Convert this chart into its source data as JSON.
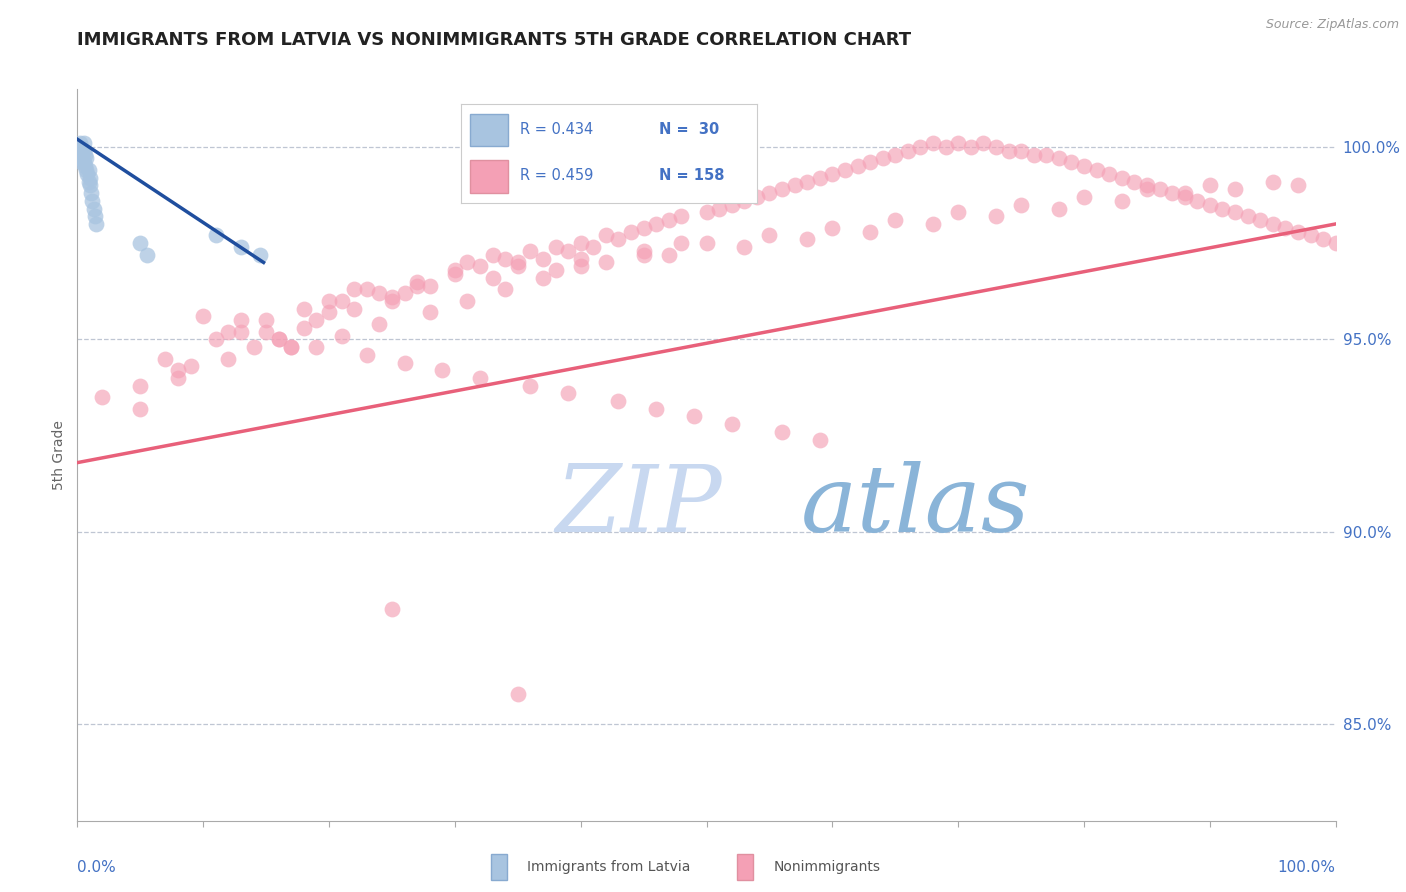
{
  "title": "IMMIGRANTS FROM LATVIA VS NONIMMIGRANTS 5TH GRADE CORRELATION CHART",
  "source_text": "Source: ZipAtlas.com",
  "ylabel": "5th Grade",
  "ylabel_right_ticks": [
    "100.0%",
    "95.0%",
    "90.0%",
    "85.0%"
  ],
  "ylabel_right_values": [
    1.0,
    0.95,
    0.9,
    0.85
  ],
  "legend_blue_R": "R = 0.434",
  "legend_blue_N": "N =  30",
  "legend_pink_R": "R = 0.459",
  "legend_pink_N": "N = 158",
  "blue_color": "#a8c4e0",
  "pink_color": "#f4a0b5",
  "blue_line_color": "#1f4e9e",
  "pink_line_color": "#e8607a",
  "title_color": "#222222",
  "axis_label_color": "#4472c4",
  "watermark_zip_color": "#c8d8f0",
  "watermark_atlas_color": "#8ab4d8",
  "background_color": "#ffffff",
  "grid_color": "#b0b8c8",
  "xlim": [
    0.0,
    1.0
  ],
  "ylim": [
    0.825,
    1.015
  ],
  "blue_scatter_x": [
    0.001,
    0.002,
    0.002,
    0.003,
    0.003,
    0.003,
    0.004,
    0.004,
    0.005,
    0.005,
    0.005,
    0.006,
    0.006,
    0.007,
    0.007,
    0.008,
    0.009,
    0.009,
    0.01,
    0.01,
    0.011,
    0.012,
    0.013,
    0.014,
    0.015,
    0.05,
    0.055,
    0.11,
    0.13,
    0.145
  ],
  "blue_scatter_y": [
    0.999,
    0.997,
    1.001,
    0.996,
    1.0,
    0.998,
    0.997,
    0.999,
    0.996,
    0.999,
    1.001,
    0.995,
    0.998,
    0.994,
    0.997,
    0.993,
    0.991,
    0.994,
    0.99,
    0.992,
    0.988,
    0.986,
    0.984,
    0.982,
    0.98,
    0.975,
    0.972,
    0.977,
    0.974,
    0.972
  ],
  "blue_line_x": [
    0.0,
    0.148
  ],
  "blue_line_y_start": 1.002,
  "blue_line_y_end": 0.97,
  "pink_line_x": [
    0.0,
    1.0
  ],
  "pink_line_y_start": 0.918,
  "pink_line_y_end": 0.98,
  "pink_scatter_x": [
    0.02,
    0.05,
    0.07,
    0.08,
    0.09,
    0.1,
    0.11,
    0.12,
    0.13,
    0.14,
    0.15,
    0.16,
    0.17,
    0.18,
    0.19,
    0.2,
    0.21,
    0.22,
    0.23,
    0.24,
    0.25,
    0.26,
    0.27,
    0.28,
    0.3,
    0.31,
    0.32,
    0.33,
    0.34,
    0.35,
    0.36,
    0.37,
    0.38,
    0.39,
    0.4,
    0.41,
    0.42,
    0.43,
    0.44,
    0.45,
    0.46,
    0.47,
    0.48,
    0.5,
    0.51,
    0.52,
    0.53,
    0.54,
    0.55,
    0.56,
    0.57,
    0.58,
    0.59,
    0.6,
    0.61,
    0.62,
    0.63,
    0.64,
    0.65,
    0.66,
    0.67,
    0.68,
    0.69,
    0.7,
    0.71,
    0.72,
    0.73,
    0.74,
    0.75,
    0.76,
    0.77,
    0.78,
    0.79,
    0.8,
    0.81,
    0.82,
    0.83,
    0.84,
    0.85,
    0.86,
    0.87,
    0.88,
    0.89,
    0.9,
    0.91,
    0.92,
    0.93,
    0.94,
    0.95,
    0.96,
    0.97,
    0.98,
    0.99,
    1.0,
    0.15,
    0.18,
    0.2,
    0.22,
    0.25,
    0.27,
    0.3,
    0.33,
    0.35,
    0.38,
    0.4,
    0.42,
    0.45,
    0.47,
    0.5,
    0.53,
    0.55,
    0.58,
    0.6,
    0.63,
    0.65,
    0.68,
    0.7,
    0.73,
    0.75,
    0.78,
    0.8,
    0.83,
    0.85,
    0.88,
    0.9,
    0.92,
    0.95,
    0.97,
    0.13,
    0.16,
    0.19,
    0.23,
    0.26,
    0.29,
    0.32,
    0.36,
    0.39,
    0.43,
    0.46,
    0.49,
    0.52,
    0.56,
    0.59,
    0.05,
    0.08,
    0.12,
    0.17,
    0.21,
    0.24,
    0.28,
    0.31,
    0.34,
    0.37,
    0.4,
    0.45,
    0.48,
    0.25,
    0.35
  ],
  "pink_scatter_y": [
    0.935,
    0.932,
    0.945,
    0.94,
    0.943,
    0.956,
    0.95,
    0.952,
    0.955,
    0.948,
    0.952,
    0.95,
    0.948,
    0.953,
    0.955,
    0.957,
    0.96,
    0.958,
    0.963,
    0.962,
    0.96,
    0.962,
    0.965,
    0.964,
    0.968,
    0.97,
    0.969,
    0.972,
    0.971,
    0.97,
    0.973,
    0.971,
    0.974,
    0.973,
    0.975,
    0.974,
    0.977,
    0.976,
    0.978,
    0.979,
    0.98,
    0.981,
    0.982,
    0.983,
    0.984,
    0.985,
    0.986,
    0.987,
    0.988,
    0.989,
    0.99,
    0.991,
    0.992,
    0.993,
    0.994,
    0.995,
    0.996,
    0.997,
    0.998,
    0.999,
    1.0,
    1.001,
    1.0,
    1.001,
    1.0,
    1.001,
    1.0,
    0.999,
    0.999,
    0.998,
    0.998,
    0.997,
    0.996,
    0.995,
    0.994,
    0.993,
    0.992,
    0.991,
    0.99,
    0.989,
    0.988,
    0.987,
    0.986,
    0.985,
    0.984,
    0.983,
    0.982,
    0.981,
    0.98,
    0.979,
    0.978,
    0.977,
    0.976,
    0.975,
    0.955,
    0.958,
    0.96,
    0.963,
    0.961,
    0.964,
    0.967,
    0.966,
    0.969,
    0.968,
    0.971,
    0.97,
    0.973,
    0.972,
    0.975,
    0.974,
    0.977,
    0.976,
    0.979,
    0.978,
    0.981,
    0.98,
    0.983,
    0.982,
    0.985,
    0.984,
    0.987,
    0.986,
    0.989,
    0.988,
    0.99,
    0.989,
    0.991,
    0.99,
    0.952,
    0.95,
    0.948,
    0.946,
    0.944,
    0.942,
    0.94,
    0.938,
    0.936,
    0.934,
    0.932,
    0.93,
    0.928,
    0.926,
    0.924,
    0.938,
    0.942,
    0.945,
    0.948,
    0.951,
    0.954,
    0.957,
    0.96,
    0.963,
    0.966,
    0.969,
    0.972,
    0.975,
    0.88,
    0.858
  ]
}
